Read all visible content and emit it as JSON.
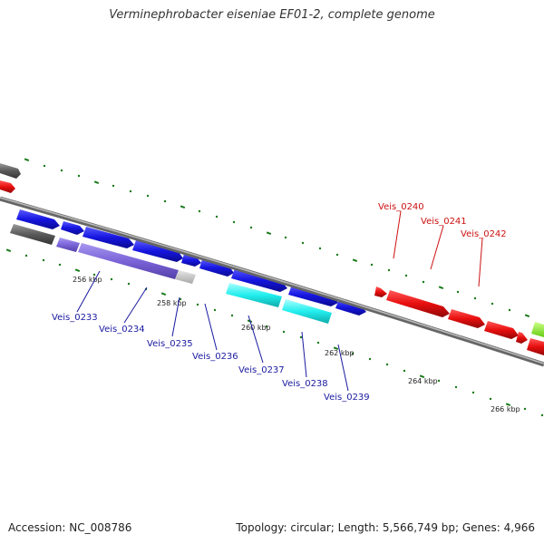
{
  "title": "Verminephrobacter eiseniae EF01-2, complete genome",
  "footer": {
    "accession": "Accession: NC_008786",
    "summary": "Topology: circular; Length: 5,566,749 bp; Genes: 4,966"
  },
  "colors": {
    "backbone": "#888888",
    "tick": "#1a7a1a",
    "label_blue": "#1a1aa0",
    "label_red": "#cc1111"
  },
  "ticks": [
    "256 kbp",
    "258 kbp",
    "260 kbp",
    "262 kbp",
    "264 kbp",
    "266 kbp"
  ],
  "gene_labels": [
    {
      "text": "Veis_0233",
      "color": "blue"
    },
    {
      "text": "Veis_0234",
      "color": "blue"
    },
    {
      "text": "Veis_0235",
      "color": "blue"
    },
    {
      "text": "Veis_0236",
      "color": "blue"
    },
    {
      "text": "Veis_0237",
      "color": "blue"
    },
    {
      "text": "Veis_0238",
      "color": "blue"
    },
    {
      "text": "Veis_0239",
      "color": "blue"
    },
    {
      "text": "Veis_0240",
      "color": "red"
    },
    {
      "text": "Veis_0241",
      "color": "red"
    },
    {
      "text": "Veis_0242",
      "color": "red"
    }
  ]
}
